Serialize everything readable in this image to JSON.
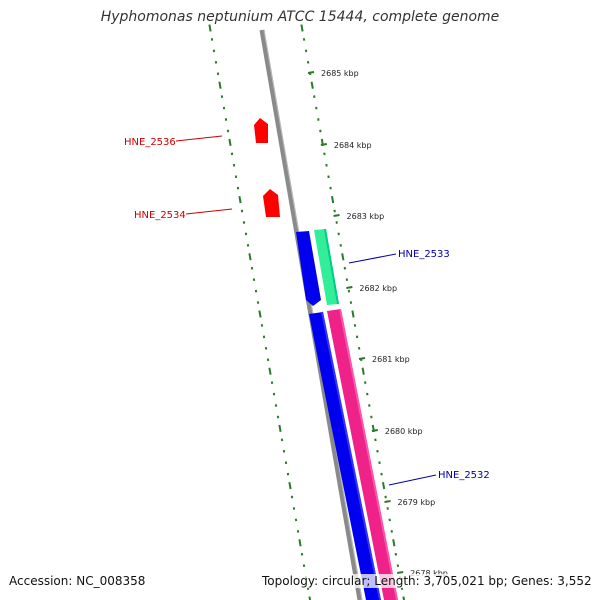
{
  "title": "Hyphomonas neptunium ATCC 15444, complete genome",
  "ticks": [
    "2685 kbp",
    "2684 kbp",
    "2683 kbp",
    "2682 kbp",
    "2681 kbp",
    "2680 kbp",
    "2679 kbp",
    "2678 kbp"
  ],
  "genes": {
    "hne_2536": {
      "label": "HNE_2536",
      "color": "#cc0000",
      "strand": "forward"
    },
    "hne_2534": {
      "label": "HNE_2534",
      "color": "#cc0000",
      "strand": "forward"
    },
    "hne_2533": {
      "label": "HNE_2533",
      "color": "#0000aa",
      "strand": "reverse"
    },
    "hne_2532": {
      "label": "HNE_2532",
      "color": "#0000aa",
      "strand": "reverse"
    }
  },
  "colors": {
    "backbone": "#8a8a8a",
    "dots": "#2a7a2a",
    "forward_gene": "#ff0000",
    "reverse_gene": "#0000ee",
    "rna_feature": "#33ee99",
    "pink_feature": "#ee2288"
  },
  "footer": {
    "accession": "Accession: NC_008358",
    "summary": "Topology: circular; Length: 3,705,021 bp; Genes: 3,552"
  }
}
